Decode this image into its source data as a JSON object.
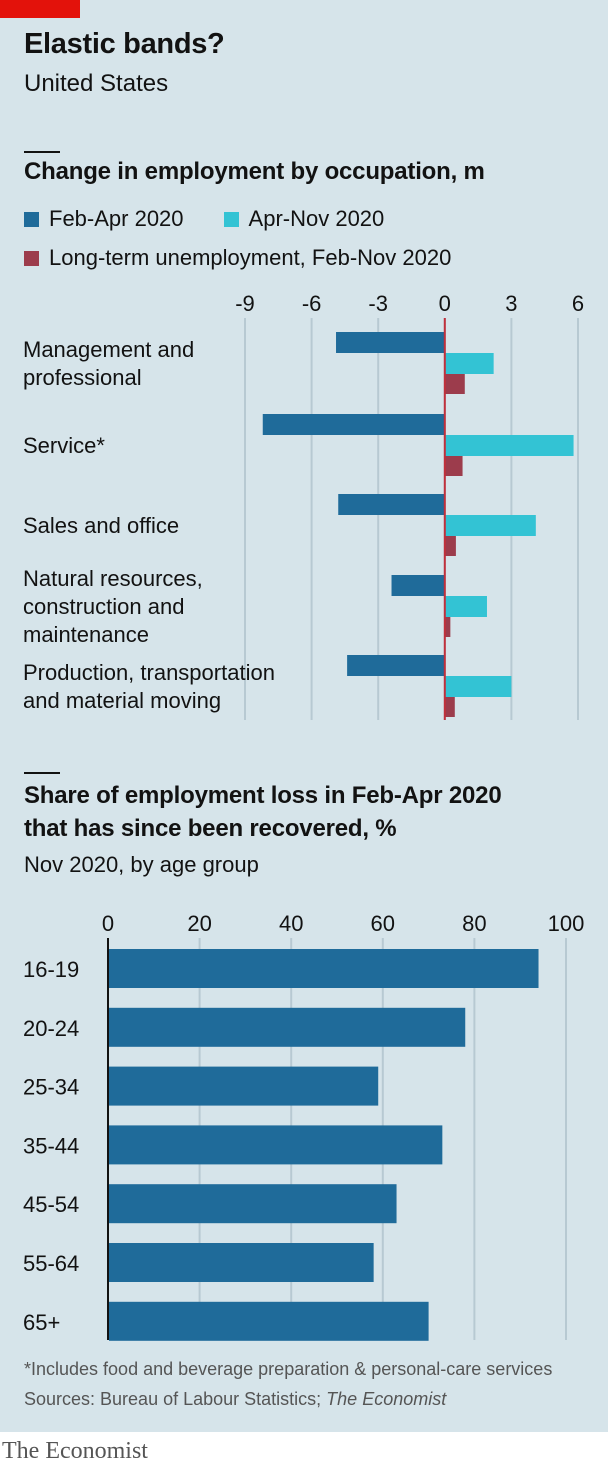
{
  "header": {
    "title": "Elastic bands?",
    "subtitle": "United States"
  },
  "chart1": {
    "title": "Change in employment by occupation, m",
    "legend": [
      "Feb-Apr 2020",
      "Apr-Nov 2020"
    ],
    "legend3_bold": "Long-term unemployment,",
    "legend3_rest": " Feb-Nov 2020"
  },
  "chart2": {
    "title_line1": "Share of employment loss in Feb-Apr 2020",
    "title_line2": "that has since been recovered, %",
    "subtitle": "Nov 2020, by age group"
  },
  "footer": {
    "note": "*Includes food and beverage preparation & personal-care services",
    "sources_prefix": "Sources: Bureau of Labour Statistics; ",
    "sources_italic": "The Economist",
    "brand": "The Economist"
  },
  "colors": {
    "feb_apr": "#1f6b9a",
    "apr_nov": "#33c3d4",
    "long_term": "#9c3c4c",
    "zero_line": "#c0303c",
    "grid": "#b7c9d2"
  },
  "chart_data": [
    {
      "type": "bar",
      "orientation": "horizontal",
      "title": "Change in employment by occupation, m",
      "categories": [
        [
          "Management and",
          "professional"
        ],
        [
          "Service*"
        ],
        [
          "Sales and office"
        ],
        [
          "Natural resources,",
          "construction and",
          "maintenance"
        ],
        [
          "Production, transportation",
          "and material moving"
        ]
      ],
      "series": [
        {
          "name": "Feb-Apr 2020",
          "values": [
            -4.9,
            -8.2,
            -4.8,
            -2.4,
            -4.4
          ]
        },
        {
          "name": "Apr-Nov 2020",
          "values": [
            2.2,
            5.8,
            4.1,
            1.9,
            3.0
          ]
        },
        {
          "name": "Long-term unemployment, Feb-Nov 2020",
          "values": [
            0.9,
            0.8,
            0.5,
            0.25,
            0.45
          ]
        }
      ],
      "xlim": [
        -9,
        6
      ],
      "xticks": [
        -9,
        -6,
        -3,
        0,
        3,
        6
      ],
      "grid": true,
      "legend_position": "top"
    },
    {
      "type": "bar",
      "orientation": "horizontal",
      "title": "Share of employment loss in Feb-Apr 2020 that has since been recovered, %",
      "categories": [
        "16-19",
        "20-24",
        "25-34",
        "35-44",
        "45-54",
        "55-64",
        "65+"
      ],
      "values": [
        94,
        78,
        59,
        73,
        63,
        58,
        70
      ],
      "xlim": [
        0,
        100
      ],
      "xticks": [
        0,
        20,
        40,
        60,
        80,
        100
      ],
      "grid": true
    }
  ]
}
